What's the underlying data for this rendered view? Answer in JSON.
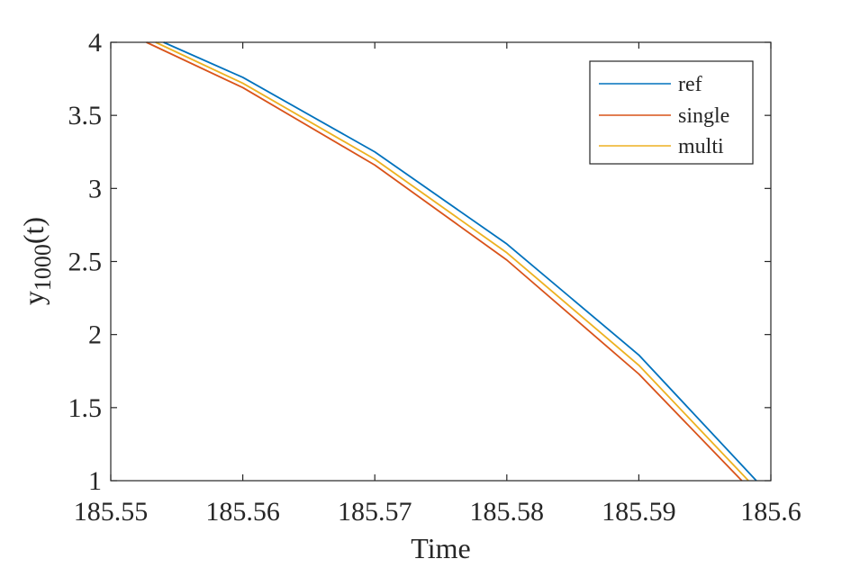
{
  "chart_data": {
    "type": "line",
    "xlabel": "Time",
    "ylabel": {
      "base": "y",
      "subscript": "1000",
      "suffix": "(t)"
    },
    "xlim": [
      185.55,
      185.6
    ],
    "ylim": [
      1,
      4
    ],
    "xticks": [
      185.55,
      185.56,
      185.57,
      185.58,
      185.59,
      185.6
    ],
    "xtick_labels": [
      "185.55",
      "185.56",
      "185.57",
      "185.58",
      "185.59",
      "185.6"
    ],
    "yticks": [
      1,
      1.5,
      2,
      2.5,
      3,
      3.5,
      4
    ],
    "ytick_labels": [
      "1",
      "1.5",
      "2",
      "2.5",
      "3",
      "3.5",
      "4"
    ],
    "grid": false,
    "legend_position": "top-right",
    "series": [
      {
        "name": "ref",
        "color": "#0072BD",
        "points": [
          [
            185.554,
            4.0
          ],
          [
            185.56,
            3.76
          ],
          [
            185.57,
            3.25
          ],
          [
            185.58,
            2.62
          ],
          [
            185.59,
            1.86
          ],
          [
            185.5989,
            1.0
          ]
        ]
      },
      {
        "name": "single",
        "color": "#D95319",
        "points": [
          [
            185.5527,
            4.0
          ],
          [
            185.56,
            3.69
          ],
          [
            185.57,
            3.16
          ],
          [
            185.58,
            2.51
          ],
          [
            185.59,
            1.73
          ],
          [
            185.5978,
            1.0
          ]
        ]
      },
      {
        "name": "multi",
        "color": "#EDB120",
        "points": [
          [
            185.5534,
            4.0
          ],
          [
            185.56,
            3.72
          ],
          [
            185.57,
            3.2
          ],
          [
            185.58,
            2.56
          ],
          [
            185.59,
            1.79
          ],
          [
            185.5983,
            1.0
          ]
        ]
      }
    ]
  }
}
